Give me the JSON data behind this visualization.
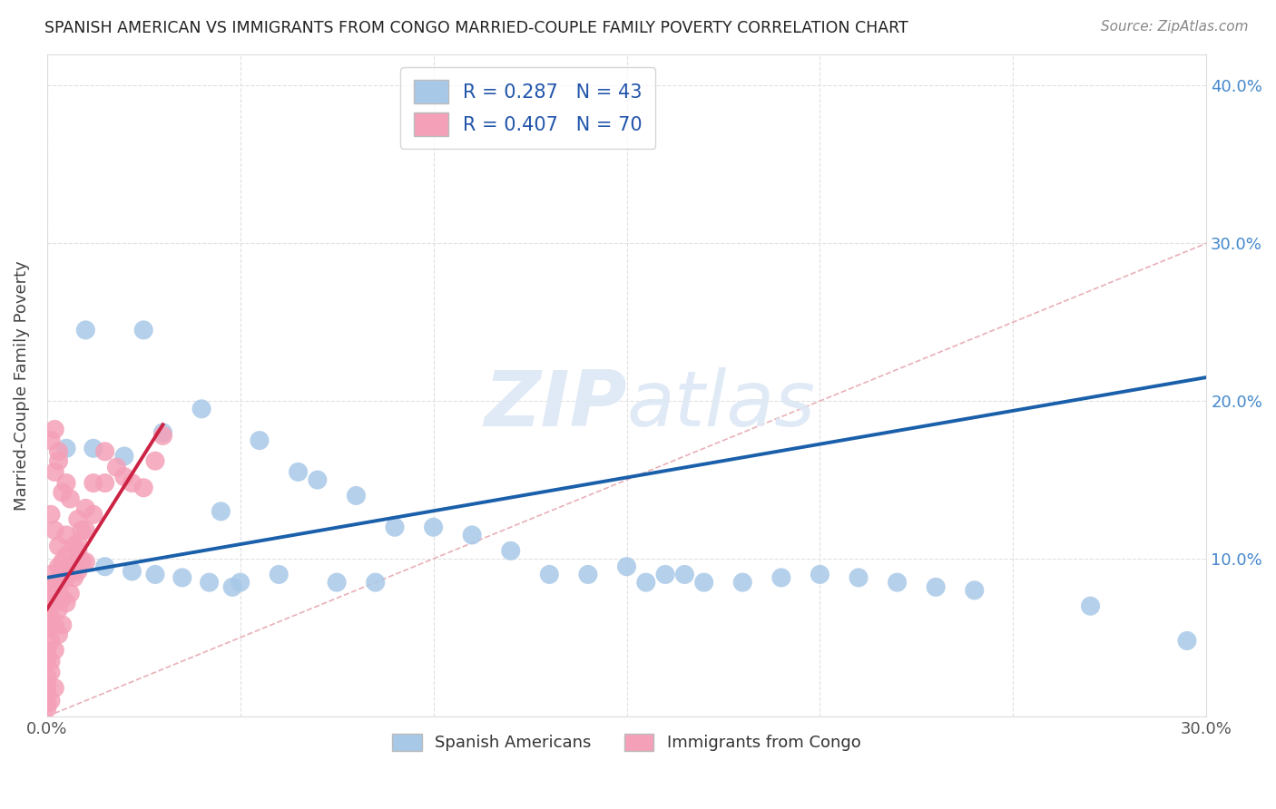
{
  "title": "SPANISH AMERICAN VS IMMIGRANTS FROM CONGO MARRIED-COUPLE FAMILY POVERTY CORRELATION CHART",
  "source": "Source: ZipAtlas.com",
  "ylabel": "Married-Couple Family Poverty",
  "xlim": [
    0.0,
    0.3
  ],
  "ylim": [
    0.0,
    0.42
  ],
  "xticks": [
    0.0,
    0.05,
    0.1,
    0.15,
    0.2,
    0.25,
    0.3
  ],
  "yticks": [
    0.0,
    0.1,
    0.2,
    0.3,
    0.4
  ],
  "blue_color": "#a8c8e8",
  "pink_color": "#f4a0b8",
  "trendline_blue": "#1a5faa",
  "trendline_pink": "#cc2244",
  "diagonal_color": "#e8b0b8",
  "blue_trend_x": [
    0.0,
    0.3
  ],
  "blue_trend_y": [
    0.088,
    0.215
  ],
  "pink_trend_x": [
    0.0,
    0.03
  ],
  "pink_trend_y": [
    0.068,
    0.185
  ],
  "blue_scatter_x": [
    0.01,
    0.025,
    0.04,
    0.005,
    0.012,
    0.02,
    0.03,
    0.045,
    0.055,
    0.065,
    0.07,
    0.08,
    0.09,
    0.1,
    0.11,
    0.12,
    0.13,
    0.14,
    0.15,
    0.155,
    0.16,
    0.165,
    0.17,
    0.18,
    0.19,
    0.2,
    0.21,
    0.22,
    0.23,
    0.24,
    0.008,
    0.015,
    0.022,
    0.028,
    0.035,
    0.042,
    0.048,
    0.05,
    0.06,
    0.075,
    0.085,
    0.27,
    0.295
  ],
  "blue_scatter_y": [
    0.245,
    0.245,
    0.195,
    0.17,
    0.17,
    0.165,
    0.18,
    0.13,
    0.175,
    0.155,
    0.15,
    0.14,
    0.12,
    0.12,
    0.115,
    0.105,
    0.09,
    0.09,
    0.095,
    0.085,
    0.09,
    0.09,
    0.085,
    0.085,
    0.088,
    0.09,
    0.088,
    0.085,
    0.082,
    0.08,
    0.1,
    0.095,
    0.092,
    0.09,
    0.088,
    0.085,
    0.082,
    0.085,
    0.09,
    0.085,
    0.085,
    0.07,
    0.048
  ],
  "pink_scatter_x": [
    0.0,
    0.0,
    0.0,
    0.0,
    0.0,
    0.0,
    0.0,
    0.001,
    0.001,
    0.001,
    0.001,
    0.001,
    0.002,
    0.002,
    0.002,
    0.002,
    0.003,
    0.003,
    0.003,
    0.003,
    0.004,
    0.004,
    0.004,
    0.005,
    0.005,
    0.005,
    0.006,
    0.006,
    0.007,
    0.007,
    0.008,
    0.008,
    0.008,
    0.009,
    0.009,
    0.01,
    0.01,
    0.01,
    0.012,
    0.012,
    0.015,
    0.015,
    0.018,
    0.02,
    0.022,
    0.025,
    0.028,
    0.03,
    0.005,
    0.008,
    0.002,
    0.003,
    0.001,
    0.002,
    0.003,
    0.004,
    0.005,
    0.006,
    0.001,
    0.002,
    0.003,
    0.004,
    0.0,
    0.001,
    0.0,
    0.0,
    0.0,
    0.001,
    0.002
  ],
  "pink_scatter_y": [
    0.068,
    0.075,
    0.08,
    0.055,
    0.042,
    0.035,
    0.025,
    0.09,
    0.078,
    0.062,
    0.048,
    0.035,
    0.085,
    0.072,
    0.058,
    0.042,
    0.095,
    0.082,
    0.068,
    0.052,
    0.088,
    0.075,
    0.058,
    0.102,
    0.088,
    0.072,
    0.095,
    0.078,
    0.108,
    0.088,
    0.125,
    0.11,
    0.092,
    0.118,
    0.098,
    0.132,
    0.118,
    0.098,
    0.148,
    0.128,
    0.168,
    0.148,
    0.158,
    0.152,
    0.148,
    0.145,
    0.162,
    0.178,
    0.115,
    0.105,
    0.155,
    0.168,
    0.175,
    0.182,
    0.162,
    0.142,
    0.148,
    0.138,
    0.128,
    0.118,
    0.108,
    0.098,
    0.015,
    0.01,
    0.008,
    0.005,
    0.02,
    0.028,
    0.018
  ]
}
